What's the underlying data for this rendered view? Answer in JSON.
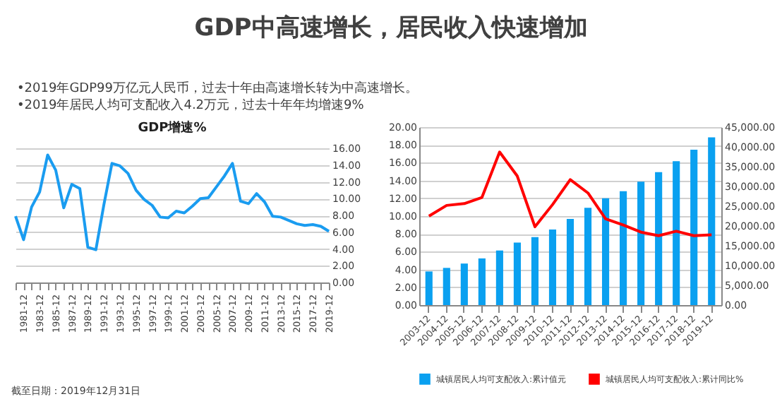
{
  "chart_data": [
    {
      "type": "line",
      "title": "GDP增速%",
      "annotations": [
        "GDP中高速增长，居民收入快速增加",
        "•2019年GDP99万亿元人民币，过去十年由高速增长转为中高速增长。",
        "•2019年居民人均可支配收入4.2万元，过去十年年均增速9%",
        "截至日期：2019年12月31日"
      ],
      "categories": [
        null,
        "1981-12",
        null,
        "1983-12",
        null,
        "1985-12",
        null,
        "1987-12",
        null,
        "1989-12",
        null,
        "1991-12",
        null,
        "1993-12",
        null,
        "1995-12",
        null,
        "1997-12",
        null,
        "1999-12",
        null,
        "2001-12",
        null,
        "2003-12",
        null,
        "2005-12",
        null,
        "2007-12",
        null,
        "2009-12",
        null,
        "2011-12",
        null,
        "2013-12",
        null,
        "2015-12",
        null,
        "2017-12",
        null,
        "2019-12"
      ],
      "series": [
        {
          "color": "#1a9cf0",
          "values": [
            7.9,
            5.1,
            9.0,
            10.8,
            15.2,
            13.4,
            8.9,
            11.7,
            11.2,
            4.2,
            3.9,
            9.3,
            14.2,
            13.9,
            13.0,
            11.0,
            9.9,
            9.2,
            7.8,
            7.7,
            8.5,
            8.3,
            9.1,
            10.0,
            10.1,
            11.4,
            12.7,
            14.2,
            9.7,
            9.4,
            10.6,
            9.6,
            7.9,
            7.8,
            7.4,
            7.0,
            6.8,
            6.9,
            6.7,
            6.1
          ]
        }
      ],
      "ylim": [
        0,
        16
      ],
      "yticks": [
        {
          "value": 0,
          "label": "0.00"
        },
        {
          "value": 2,
          "label": "2.00"
        },
        {
          "value": 4,
          "label": "4.00"
        },
        {
          "value": 6,
          "label": "6.00"
        },
        {
          "value": 8,
          "label": "8.00"
        },
        {
          "value": 10,
          "label": "10.00"
        },
        {
          "value": 12,
          "label": "12.00"
        },
        {
          "value": 14,
          "label": "14.00"
        },
        {
          "value": 16,
          "label": "16.00"
        }
      ],
      "grid": "y"
    },
    {
      "type": "bar",
      "categories": [
        "2003-12",
        "2004-12",
        "2005-12",
        "2006-12",
        "2007-12",
        "2008-12",
        "2009-12",
        "2010-12",
        "2011-12",
        "2012-12",
        "2013-12",
        "2014-12",
        "2015-12",
        "2016-12",
        "2017-12",
        "2018-12",
        "2019-12"
      ],
      "series": [
        {
          "name": "城镇居民人均可支配收入:累计值元",
          "axis": "y2",
          "color": "#0aa0f0",
          "values": [
            8500,
            9400,
            10500,
            11800,
            13800,
            15800,
            17200,
            19100,
            21800,
            24600,
            27000,
            28800,
            31200,
            33600,
            36400,
            39300,
            42400
          ]
        },
        {
          "name": "城镇居民人均可支配收入:累计同比%",
          "type": "line",
          "color": "#ff0000",
          "values": [
            10.0,
            11.2,
            11.4,
            12.1,
            17.2,
            14.5,
            8.8,
            11.3,
            14.1,
            12.6,
            9.7,
            9.0,
            8.2,
            7.8,
            8.3,
            7.8,
            7.9
          ]
        }
      ],
      "ylim": [
        0,
        20
      ],
      "yticks": [
        {
          "value": 0,
          "label": "0.00"
        },
        {
          "value": 2,
          "label": "2.00"
        },
        {
          "value": 4,
          "label": "4.00"
        },
        {
          "value": 6,
          "label": "6.00"
        },
        {
          "value": 8,
          "label": "8.00"
        },
        {
          "value": 10,
          "label": "10.00"
        },
        {
          "value": 12,
          "label": "12.00"
        },
        {
          "value": 14,
          "label": "14.00"
        },
        {
          "value": 16,
          "label": "16.00"
        },
        {
          "value": 18,
          "label": "18.00"
        },
        {
          "value": 20,
          "label": "20.00"
        }
      ],
      "y2lim": [
        0,
        45000
      ],
      "y2ticks": [
        {
          "value": 0,
          "label": "0.00"
        },
        {
          "value": 5000,
          "label": "5,000.00"
        },
        {
          "value": 10000,
          "label": "10,000.00"
        },
        {
          "value": 15000,
          "label": "15,000.00"
        },
        {
          "value": 20000,
          "label": "20,000.00"
        },
        {
          "value": 25000,
          "label": "25,000.00"
        },
        {
          "value": 30000,
          "label": "30,000.00"
        },
        {
          "value": 35000,
          "label": "35,000.00"
        },
        {
          "value": 40000,
          "label": "40,000.00"
        },
        {
          "value": 45000,
          "label": "45,000.00"
        }
      ],
      "grid": "y",
      "legend": "bottom"
    }
  ]
}
